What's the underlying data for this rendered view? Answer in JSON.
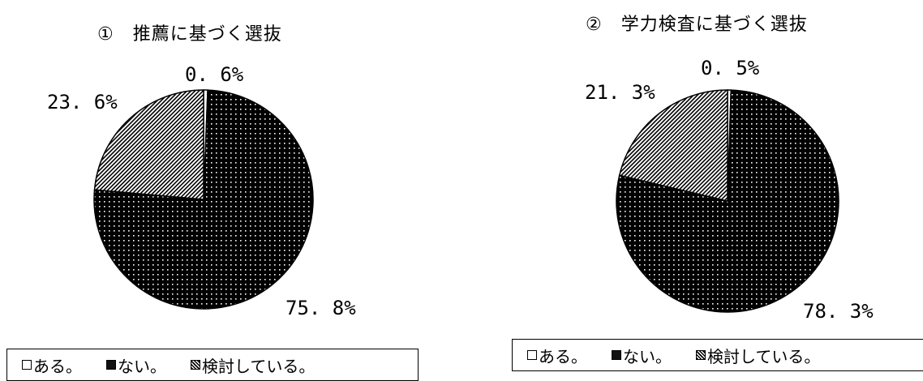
{
  "colors": {
    "ink": "#000000",
    "paper": "#ffffff"
  },
  "chart_data": [
    {
      "type": "pie",
      "title": "①　推薦に基づく選抜",
      "categories": [
        "ある。",
        "ない。",
        "検討している。"
      ],
      "values": [
        0.6,
        75.8,
        23.6
      ],
      "value_labels": [
        "0. 6%",
        "75. 8%",
        "23. 6%"
      ],
      "legend": [
        "ある。",
        "ない。",
        "検討している。"
      ],
      "legend_position": "bottom",
      "fills": [
        "white",
        "black-with-white-dots",
        "diagonal-hatch"
      ]
    },
    {
      "type": "pie",
      "title": "②　学力検査に基づく選抜",
      "categories": [
        "ある。",
        "ない。",
        "検討している。"
      ],
      "values": [
        0.5,
        78.3,
        21.3
      ],
      "value_labels": [
        "0. 5%",
        "78. 3%",
        "21. 3%"
      ],
      "legend": [
        "ある。",
        "ない。",
        "検討している。"
      ],
      "legend_position": "bottom",
      "fills": [
        "white",
        "black-with-white-dots",
        "diagonal-hatch"
      ]
    }
  ]
}
